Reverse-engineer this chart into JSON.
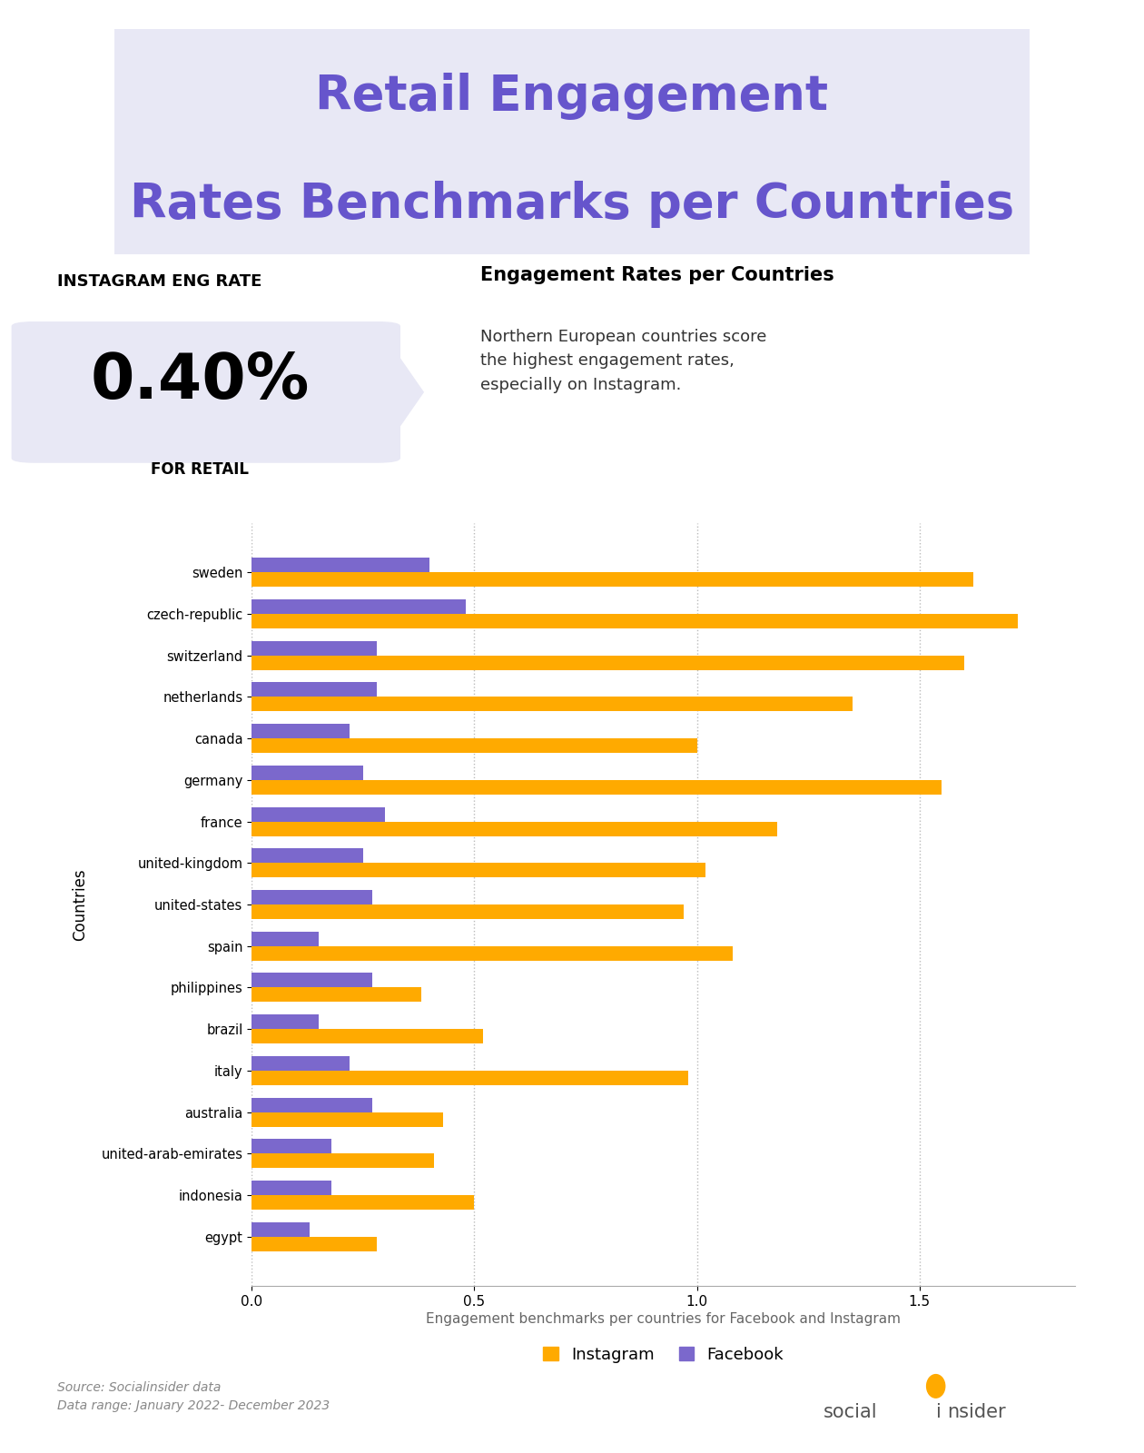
{
  "title_line1": "Retail Engagement",
  "title_line2": "Rates Benchmarks per Countries",
  "title_color": "#6655cc",
  "title_bg_color": "#e8e8f5",
  "ig_eng_label": "INSTAGRAM ENG RATE",
  "ig_eng_value": "0.40%",
  "ig_eng_sub": "FOR RETAIL",
  "insight_title": "Engagement Rates per Countries",
  "insight_text": "Northern European countries score\nthe highest engagement rates,\nespecially on Instagram.",
  "countries": [
    "sweden",
    "czech-republic",
    "switzerland",
    "netherlands",
    "canada",
    "germany",
    "france",
    "united-kingdom",
    "united-states",
    "spain",
    "philippines",
    "brazil",
    "italy",
    "australia",
    "united-arab-emirates",
    "indonesia",
    "egypt"
  ],
  "instagram_values": [
    1.62,
    1.72,
    1.6,
    1.35,
    1.0,
    1.55,
    1.18,
    1.02,
    0.97,
    1.08,
    0.38,
    0.52,
    0.98,
    0.43,
    0.41,
    0.5,
    0.28
  ],
  "facebook_values": [
    0.4,
    0.48,
    0.28,
    0.28,
    0.22,
    0.25,
    0.3,
    0.25,
    0.27,
    0.15,
    0.27,
    0.15,
    0.22,
    0.27,
    0.18,
    0.18,
    0.13
  ],
  "instagram_color": "#FFAA00",
  "facebook_color": "#7B68CC",
  "bg_color": "#ffffff",
  "xlabel_text": "Engagement benchmarks per countries for Facebook and Instagram",
  "ylabel_text": "Countries",
  "source_text": "Source: Socialinsider data\nData range: January 2022- December 2023",
  "xlim": [
    0,
    1.85
  ],
  "xticks": [
    0,
    0.5,
    1,
    1.5
  ],
  "bar_height": 0.35
}
